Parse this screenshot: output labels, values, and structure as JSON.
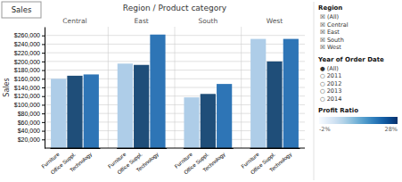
{
  "chart_data": {
    "type": "bar",
    "title": "Region / Product category",
    "y_label": "Sales",
    "categories": [
      "Central",
      "East",
      "South",
      "West"
    ],
    "series": [
      {
        "name": "Furniture",
        "color": "#aecde8",
        "values": [
          160000,
          195000,
          117000,
          252000
        ]
      },
      {
        "name": "Office Suppl.",
        "color": "#1f4e79",
        "values": [
          167000,
          192000,
          125000,
          200000
        ]
      },
      {
        "name": "Technology",
        "color": "#2e75b6",
        "values": [
          170000,
          262000,
          148000,
          252000
        ]
      }
    ],
    "ylim": [
      0,
      280000
    ],
    "yticks": [
      {
        "value": 20000,
        "label": "$20,000"
      },
      {
        "value": 40000,
        "label": "$40,000"
      },
      {
        "value": 60000,
        "label": "$60,000"
      },
      {
        "value": 80000,
        "label": "$80,000"
      },
      {
        "value": 100000,
        "label": "$100,000"
      },
      {
        "value": 120000,
        "label": "$120,000"
      },
      {
        "value": 140000,
        "label": "$140,000"
      },
      {
        "value": 160000,
        "label": "$160,000"
      },
      {
        "value": 180000,
        "label": "$180,000"
      },
      {
        "value": 200000,
        "label": "$200,000"
      },
      {
        "value": 220000,
        "label": "$220,000"
      },
      {
        "value": 240000,
        "label": "$240,000"
      },
      {
        "value": 260000,
        "label": "$260,000"
      }
    ],
    "grid": true,
    "annotations": [
      "Sales"
    ],
    "filters": [
      {
        "title": "Region",
        "items": [
          "☒ (All)",
          "☒ Central",
          "☒ East",
          "☒ South",
          "☒ West"
        ]
      },
      {
        "title": "Year of Order Date",
        "items": [
          "● (All)",
          "○ 2011",
          "○ 2012",
          "○ 2013",
          "○ 2014"
        ]
      }
    ],
    "colorbar": {
      "title": "Profit Ratio",
      "range": [
        -2,
        28
      ],
      "ticks": [
        {
          "value": -2,
          "label": "-2%"
        },
        {
          "value": 28,
          "label": "28%"
        }
      ]
    }
  }
}
